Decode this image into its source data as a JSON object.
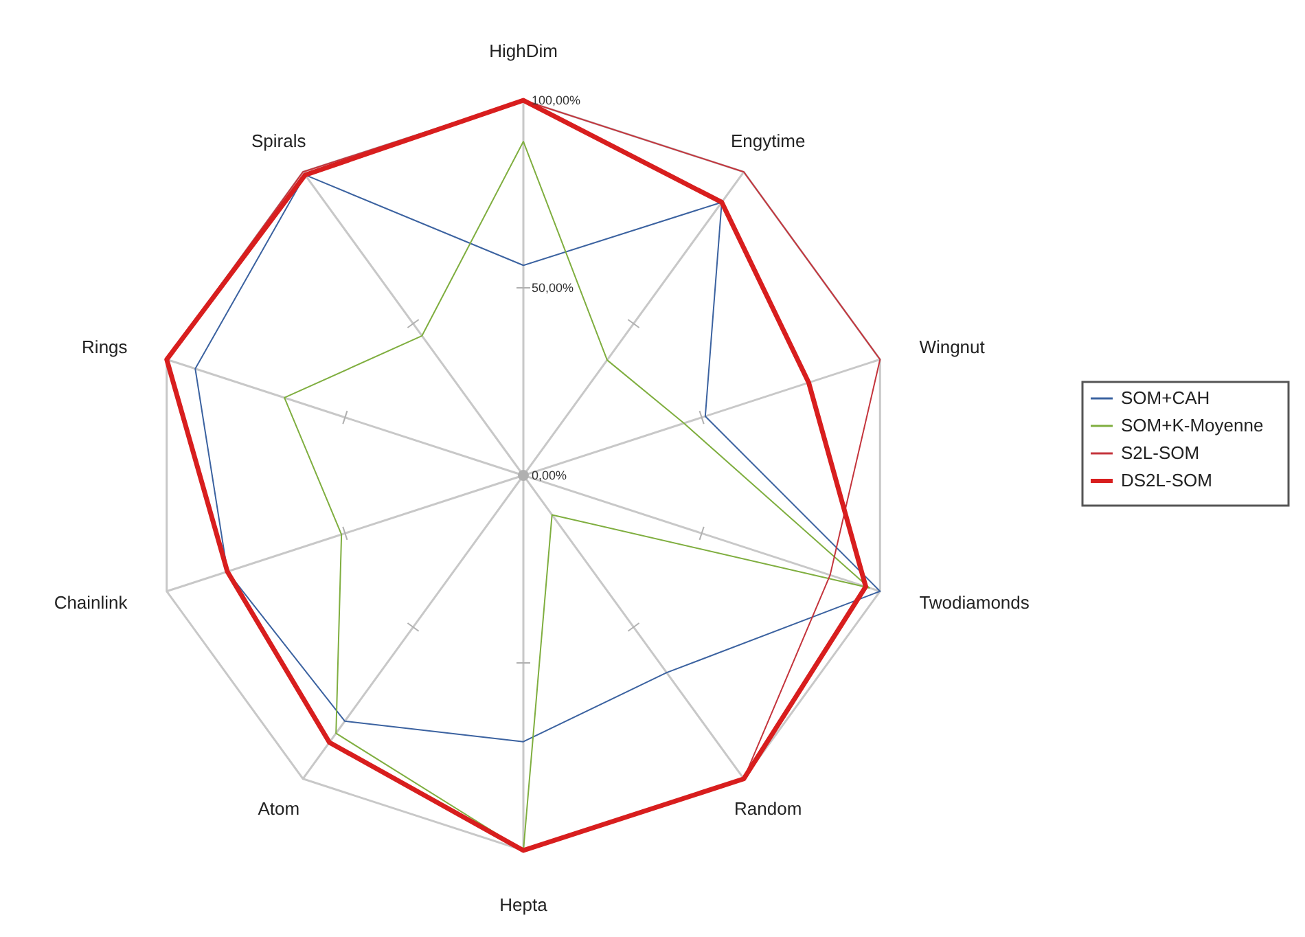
{
  "chart_data": {
    "type": "radar",
    "categories": [
      "HighDim",
      "Engytime",
      "Wingnut",
      "Twodiamonds",
      "Random",
      "Hepta",
      "Atom",
      "Chainlink",
      "Rings",
      "Spirals"
    ],
    "ylim": [
      0,
      100
    ],
    "yticks": [
      {
        "value": 0,
        "label": "0,00%"
      },
      {
        "value": 50,
        "label": "50,00%"
      },
      {
        "value": 100,
        "label": "100,00%"
      }
    ],
    "grid": true,
    "legend": "right",
    "marker": "none",
    "series": [
      {
        "name": "SOM+CAH",
        "color": "#3b62a0",
        "values": [
          56,
          90,
          51,
          100,
          65,
          71,
          81,
          83,
          92,
          99
        ]
      },
      {
        "name": "SOM+K-Moyenne",
        "color": "#7fae3f",
        "values": [
          89,
          38,
          45,
          97,
          13,
          100,
          85,
          51,
          67,
          46
        ]
      },
      {
        "name": "S2L-SOM",
        "color": "#c4343c",
        "values": [
          100,
          100,
          100,
          86,
          100,
          100,
          88,
          83,
          100,
          100
        ]
      },
      {
        "name": "DS2L-SOM",
        "color": "#d81e1e",
        "values": [
          100,
          90,
          80,
          96,
          100,
          100,
          88,
          83,
          100,
          99
        ]
      }
    ]
  }
}
